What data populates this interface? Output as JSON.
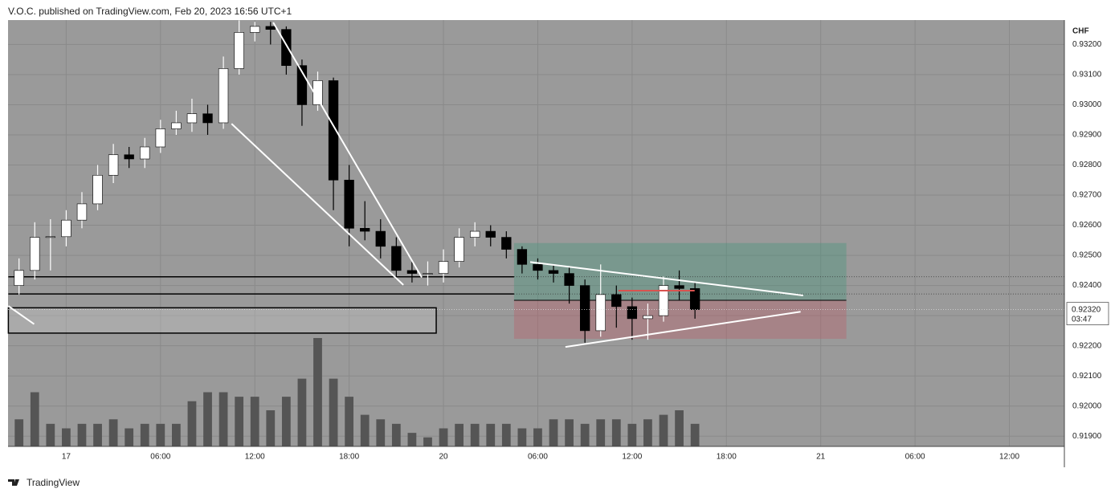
{
  "header": {
    "publisher": "V.O.C. published on TradingView.com, Feb 20, 2023 16:56 UTC+1"
  },
  "footer": {
    "brand": "TradingView"
  },
  "chart_data": {
    "type": "candlestick",
    "currency": "CHF",
    "up_color": "#ffffff",
    "down_color": "#000000",
    "volume_color": "#555555",
    "background": "#9a9a9a",
    "grid": true,
    "x": [
      -3,
      -2,
      -1,
      0,
      1,
      2,
      3,
      4,
      5,
      6,
      7,
      8,
      9,
      10,
      11,
      12,
      13,
      14,
      15,
      16,
      17,
      18,
      19,
      20,
      21,
      22,
      23,
      24,
      25,
      26,
      27,
      28,
      29,
      30,
      31,
      32,
      33,
      34,
      35,
      36,
      37,
      38,
      39,
      40
    ],
    "open": [
      0.924,
      0.9245,
      0.9256,
      0.92562,
      0.92617,
      0.92671,
      0.92766,
      0.92834,
      0.9282,
      0.9286,
      0.9292,
      0.9294,
      0.9297,
      0.9294,
      0.9312,
      0.9324,
      0.9326,
      0.9325,
      0.9313,
      0.93,
      0.9308,
      0.9275,
      0.9259,
      0.9258,
      0.9253,
      0.9245,
      0.9244,
      0.9244,
      0.9248,
      0.9256,
      0.9258,
      0.9256,
      0.9252,
      0.9247,
      0.9245,
      0.9244,
      0.924,
      0.9225,
      0.9237,
      0.9233,
      0.9229,
      0.923,
      0.924,
      0.9239
    ],
    "high": [
      0.9249,
      0.9261,
      0.9262,
      0.9265,
      0.9271,
      0.928,
      0.9287,
      0.9286,
      0.9289,
      0.9295,
      0.9298,
      0.9302,
      0.93,
      0.9316,
      0.9328,
      0.93275,
      0.93275,
      0.9326,
      0.9315,
      0.9311,
      0.9309,
      0.928,
      0.9268,
      0.9262,
      0.9256,
      0.9248,
      0.9248,
      0.9252,
      0.9259,
      0.9261,
      0.926,
      0.9258,
      0.9253,
      0.9249,
      0.9247,
      0.9246,
      0.9242,
      0.9247,
      0.924,
      0.9236,
      0.9234,
      0.9243,
      0.9245,
      0.9241
    ],
    "low": [
      0.9237,
      0.9242,
      0.9245,
      0.9253,
      0.9259,
      0.9265,
      0.9274,
      0.9279,
      0.9279,
      0.9284,
      0.929,
      0.9291,
      0.929,
      0.9292,
      0.931,
      0.9321,
      0.932,
      0.931,
      0.9293,
      0.9298,
      0.9265,
      0.9253,
      0.9255,
      0.9249,
      0.9242,
      0.9241,
      0.924,
      0.9241,
      0.9246,
      0.9253,
      0.9253,
      0.9249,
      0.9244,
      0.9242,
      0.9241,
      0.9234,
      0.9221,
      0.9223,
      0.9226,
      0.9222,
      0.9222,
      0.9228,
      0.9235,
      0.9229
    ],
    "close": [
      0.9245,
      0.9256,
      0.92562,
      0.92617,
      0.92671,
      0.92766,
      0.92834,
      0.9282,
      0.9286,
      0.9292,
      0.9294,
      0.9297,
      0.9294,
      0.9312,
      0.9324,
      0.9326,
      0.9325,
      0.9313,
      0.93,
      0.9308,
      0.9275,
      0.9259,
      0.9258,
      0.9253,
      0.9245,
      0.9244,
      0.9244,
      0.9248,
      0.9256,
      0.9258,
      0.9256,
      0.9252,
      0.9247,
      0.9245,
      0.9244,
      0.924,
      0.9225,
      0.9237,
      0.9233,
      0.9229,
      0.923,
      0.924,
      0.9239,
      0.9232
    ],
    "volume": [
      30,
      60,
      25,
      20,
      25,
      25,
      30,
      20,
      25,
      25,
      25,
      50,
      60,
      60,
      55,
      55,
      40,
      55,
      75,
      120,
      75,
      55,
      35,
      30,
      25,
      15,
      10,
      20,
      25,
      25,
      25,
      25,
      20,
      20,
      30,
      30,
      25,
      30,
      30,
      25,
      30,
      35,
      40,
      25
    ],
    "xlim": [
      -3.7,
      63.5
    ],
    "xticks": [
      {
        "value": 0,
        "label": "17"
      },
      {
        "value": 6,
        "label": "06:00"
      },
      {
        "value": 12,
        "label": "12:00"
      },
      {
        "value": 18,
        "label": "18:00"
      },
      {
        "value": 24,
        "label": "20"
      },
      {
        "value": 30,
        "label": "06:00"
      },
      {
        "value": 36,
        "label": "12:00"
      },
      {
        "value": 42,
        "label": "18:00"
      },
      {
        "value": 48,
        "label": "21"
      },
      {
        "value": 54,
        "label": "06:00"
      },
      {
        "value": 60,
        "label": "12:00"
      }
    ],
    "ylim": [
      0.91866,
      0.93281
    ],
    "yticks": [
      {
        "value": 0.919,
        "label": "0.91900"
      },
      {
        "value": 0.92,
        "label": "0.92000"
      },
      {
        "value": 0.921,
        "label": "0.92100"
      },
      {
        "value": 0.922,
        "label": "0.92200"
      },
      {
        "value": 0.923,
        "label": "0.92300"
      },
      {
        "value": 0.924,
        "label": "0.92400"
      },
      {
        "value": 0.925,
        "label": "0.92500"
      },
      {
        "value": 0.926,
        "label": "0.92600"
      },
      {
        "value": 0.927,
        "label": "0.92700"
      },
      {
        "value": 0.928,
        "label": "0.92800"
      },
      {
        "value": 0.929,
        "label": "0.92900"
      },
      {
        "value": 0.93,
        "label": "0.93000"
      },
      {
        "value": 0.931,
        "label": "0.93100"
      },
      {
        "value": 0.932,
        "label": "0.93200"
      }
    ],
    "last_price": {
      "value": 0.9232,
      "label": "0.92320"
    },
    "countdown": "03:47",
    "trendlines": [
      {
        "x": [
          13.17,
          22.62
        ],
        "y": [
          0.93273,
          0.92427
        ]
      },
      {
        "x": [
          10.52,
          21.45
        ],
        "y": [
          0.92937,
          0.92402
        ]
      },
      {
        "x": [
          -3.68,
          -2.04
        ],
        "y": [
          0.92332,
          0.92272
        ]
      },
      {
        "x": [
          29.52,
          46.88
        ],
        "y": [
          0.92478,
          0.92367
        ]
      },
      {
        "x": [
          31.76,
          46.72
        ],
        "y": [
          0.92196,
          0.92313
        ]
      }
    ],
    "levels": [
      {
        "x": [
          -3.68,
          28.49
        ],
        "y": 0.92429
      },
      {
        "x": [
          -3.68,
          28.49
        ],
        "y": 0.92372
      }
    ],
    "zone": {
      "x": [
        -3.68,
        23.54
      ],
      "y": [
        0.92242,
        0.92326
      ]
    },
    "position": {
      "x": [
        28.49,
        49.63
      ],
      "target": 0.92541,
      "entry": 0.92351,
      "stop": 0.92223
    },
    "marker_line": {
      "x": [
        35.13,
        39.98
      ],
      "y": 0.92383
    }
  }
}
